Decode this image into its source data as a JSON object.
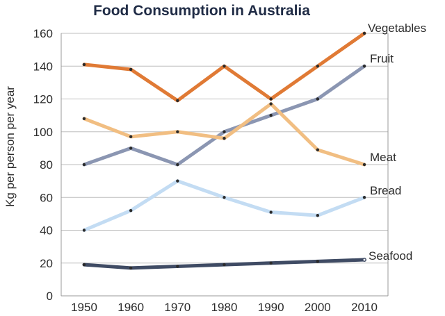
{
  "chart_data": {
    "type": "line",
    "title": "Food Consumption in Australia",
    "xlabel": "",
    "ylabel": "Kg per person per year",
    "x": [
      1950,
      1960,
      1970,
      1980,
      1990,
      2000,
      2010
    ],
    "x_tick_labels": [
      "1950",
      "1960",
      "1970",
      "1980",
      "1990",
      "2000",
      "2010"
    ],
    "ylim": [
      0,
      160
    ],
    "y_ticks": [
      0,
      20,
      40,
      60,
      80,
      100,
      120,
      140,
      160
    ],
    "y_tick_labels": [
      "0",
      "20",
      "40",
      "60",
      "80",
      "100",
      "120",
      "140",
      "160"
    ],
    "grid": true,
    "series": [
      {
        "name": "Vegetables",
        "color": "#e07a35",
        "values": [
          141,
          138,
          119,
          140,
          120,
          140,
          160
        ]
      },
      {
        "name": "Fruit",
        "color": "#8b96b2",
        "values": [
          80,
          90,
          80,
          100,
          110,
          120,
          140
        ]
      },
      {
        "name": "Meat",
        "color": "#f1be82",
        "values": [
          108,
          97,
          100,
          96,
          117,
          89,
          80
        ]
      },
      {
        "name": "Bread",
        "color": "#c3dcf3",
        "values": [
          40,
          52,
          70,
          60,
          51,
          49,
          60
        ]
      },
      {
        "name": "Seafood",
        "color": "#3f4b64",
        "values": [
          19,
          17,
          18,
          19,
          20,
          21,
          22
        ]
      }
    ]
  }
}
